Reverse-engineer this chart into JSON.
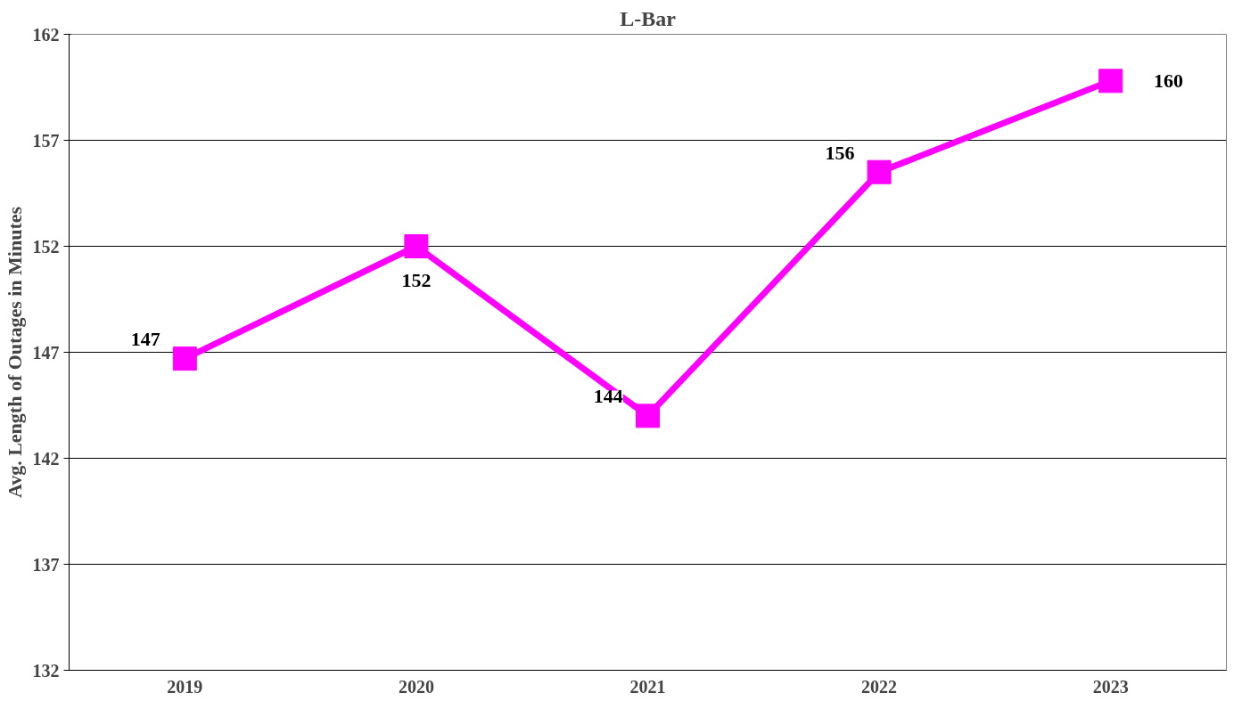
{
  "chart_data": {
    "type": "line",
    "title": "L-Bar",
    "ylabel": "Avg. Length of Outages in Minutes",
    "categories": [
      "2019",
      "2020",
      "2021",
      "2022",
      "2023"
    ],
    "series": [
      {
        "color": "#ff00ff",
        "values": [
          146.7,
          152,
          144,
          155.5,
          159.8
        ],
        "value_labels": [
          "147",
          "152",
          "144",
          "156",
          "160"
        ]
      }
    ],
    "ylim": [
      132,
      162
    ],
    "yticks": [
      132,
      137,
      142,
      147,
      152,
      157,
      162
    ],
    "grid": "y",
    "marker": "square",
    "line_style": "solid"
  }
}
